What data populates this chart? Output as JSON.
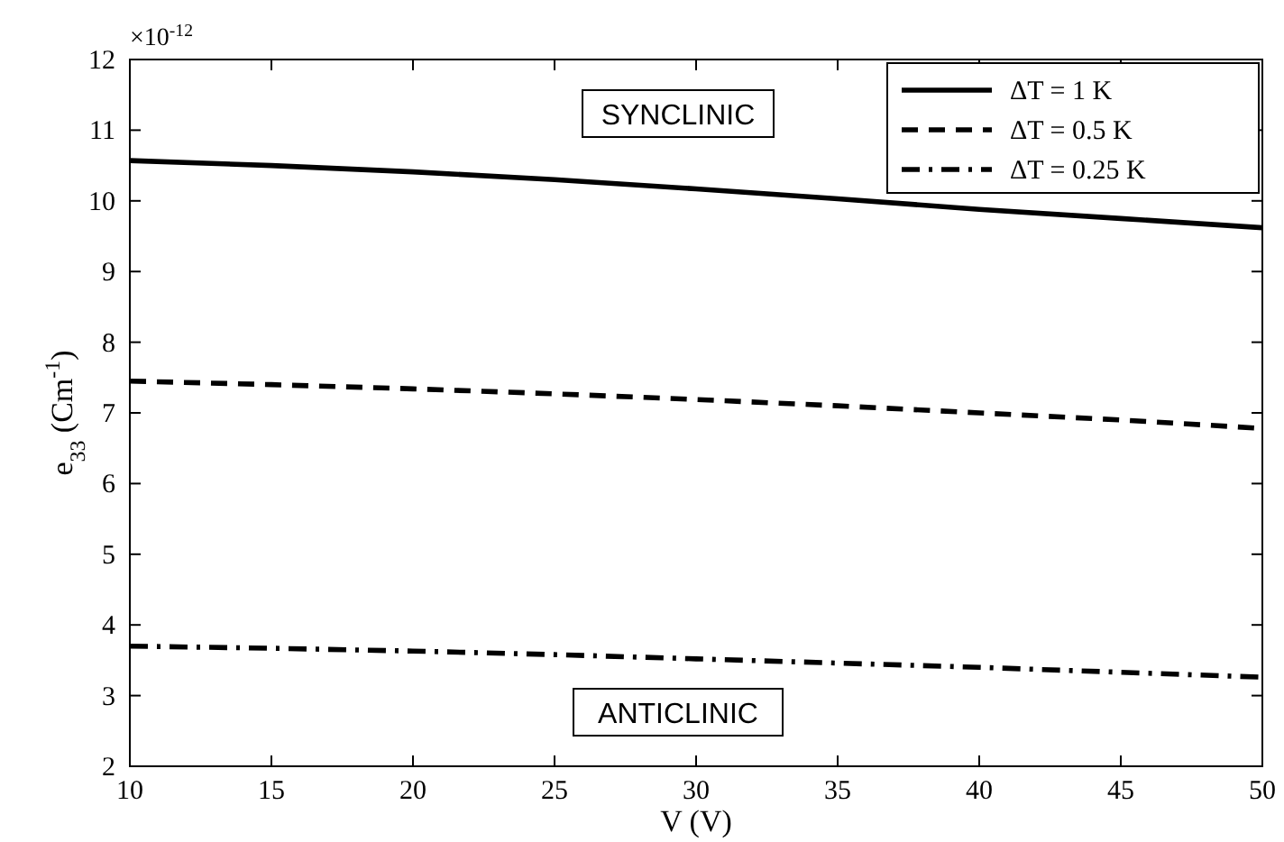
{
  "chart_data": {
    "type": "line",
    "xlabel": "V (V)",
    "ylabel": "e$_{33}$ (Cm$^{-1}$)",
    "x": [
      10,
      15,
      20,
      25,
      30,
      35,
      40,
      45,
      50
    ],
    "xlim": [
      10,
      50
    ],
    "xticks": [
      10,
      15,
      20,
      25,
      30,
      35,
      40,
      45,
      50
    ],
    "ylim": [
      2,
      12
    ],
    "yticks": [
      2,
      3,
      4,
      5,
      6,
      7,
      8,
      9,
      10,
      11,
      12
    ],
    "grid": false,
    "legend": "top right",
    "marker": "none",
    "series": [
      {
        "name": "ΔT = 1 K",
        "color": "#000000",
        "line_style": "solid",
        "values": [
          10.57,
          10.5,
          10.41,
          10.3,
          10.17,
          10.03,
          9.88,
          9.75,
          9.62
        ]
      },
      {
        "name": "ΔT = 0.5 K",
        "color": "#000000",
        "line_style": "dashed",
        "values": [
          7.45,
          7.4,
          7.34,
          7.27,
          7.19,
          7.1,
          7.0,
          6.9,
          6.78
        ]
      },
      {
        "name": "ΔT = 0.25 K",
        "color": "#000000",
        "line_style": "dashdot",
        "values": [
          3.7,
          3.67,
          3.63,
          3.58,
          3.52,
          3.46,
          3.4,
          3.33,
          3.26
        ]
      }
    ],
    "annotations": [
      "×10$^{-12}$",
      "SYNCLINIC",
      "ANTICLINIC"
    ]
  }
}
